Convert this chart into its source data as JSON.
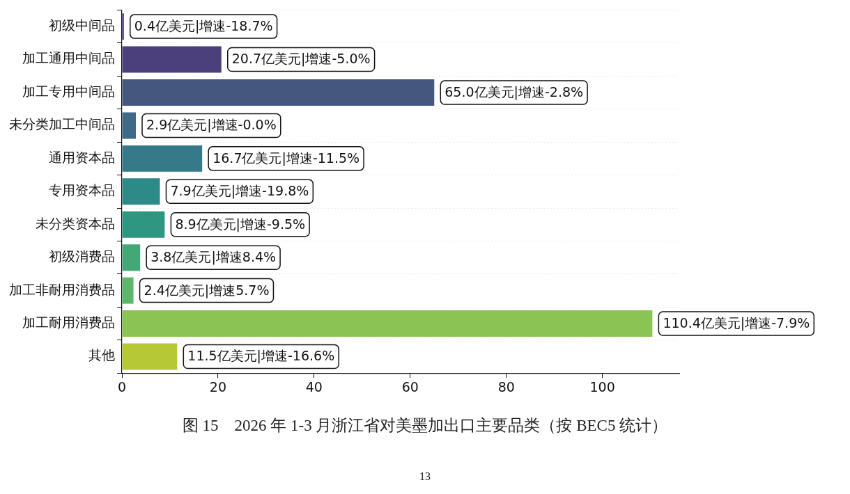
{
  "chart_data": {
    "type": "bar",
    "orientation": "horizontal",
    "title": "图 15　2026 年 1-3 月浙江省对美墨加出口主要品类（按 BEC5 统计）",
    "categories": [
      "初级中间品",
      "加工通用中间品",
      "加工专用中间品",
      "未分类加工中间品",
      "通用资本品",
      "专用资本品",
      "未分类资本品",
      "初级消费品",
      "加工非耐用消费品",
      "加工耐用消费品",
      "其他"
    ],
    "values": [
      0.4,
      20.7,
      65.0,
      2.9,
      16.7,
      7.9,
      8.9,
      3.8,
      2.4,
      110.4,
      11.5
    ],
    "colors": [
      "#482878",
      "#4b3f7c",
      "#45567f",
      "#3e6a87",
      "#367a8a",
      "#2e8a86",
      "#2f9781",
      "#44a776",
      "#5cb76a",
      "#8bc455",
      "#b7c836"
    ],
    "value_labels": [
      "0.4亿美元|增速-18.7%",
      "20.7亿美元|增速-5.0%",
      "65.0亿美元|增速-2.8%",
      "2.9亿美元|增速-0.0%",
      "16.7亿美元|增速-11.5%",
      "7.9亿美元|增速-19.8%",
      "8.9亿美元|增速-9.5%",
      "3.8亿美元|增速8.4%",
      "2.4亿美元|增速5.7%",
      "110.4亿美元|增速-7.9%",
      "11.5亿美元|增速-16.6%"
    ],
    "xlim": [
      0,
      116
    ],
    "xticks": [
      0,
      20,
      40,
      60,
      80,
      100
    ],
    "grid": "y",
    "legend": false,
    "annotations": [
      "13"
    ]
  }
}
